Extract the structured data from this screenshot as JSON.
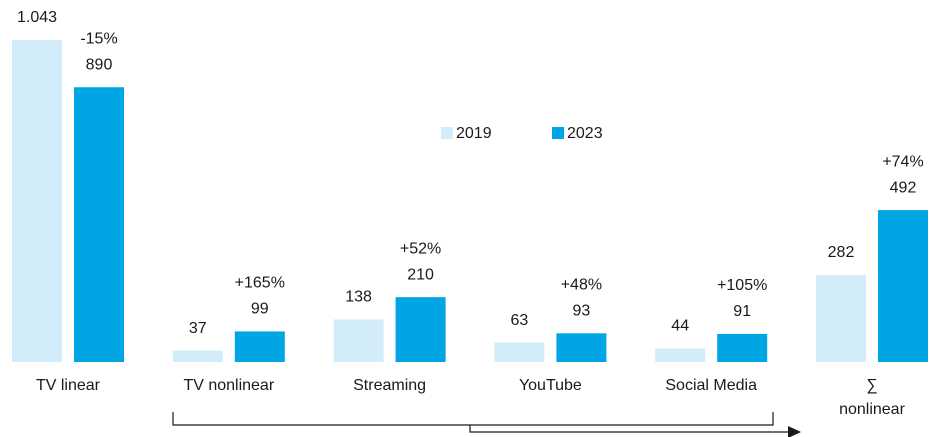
{
  "chart_data": {
    "type": "bar",
    "categories": [
      "TV linear",
      "TV nonlinear",
      "Streaming",
      "YouTube",
      "Social Media",
      "∑\nnonlinear"
    ],
    "series": [
      {
        "name": "2019",
        "color": "#d3ecf9",
        "values": [
          1043,
          37,
          138,
          63,
          44,
          282
        ],
        "value_labels": [
          "1.043",
          "37",
          "138",
          "63",
          "44",
          "282"
        ]
      },
      {
        "name": "2023",
        "color": "#00a5e3",
        "values": [
          890,
          99,
          210,
          93,
          91,
          492
        ]
      }
    ],
    "annotations": [
      "-15%",
      "+165%",
      "+52%",
      "+48%",
      "+105%",
      "+74%"
    ]
  }
}
